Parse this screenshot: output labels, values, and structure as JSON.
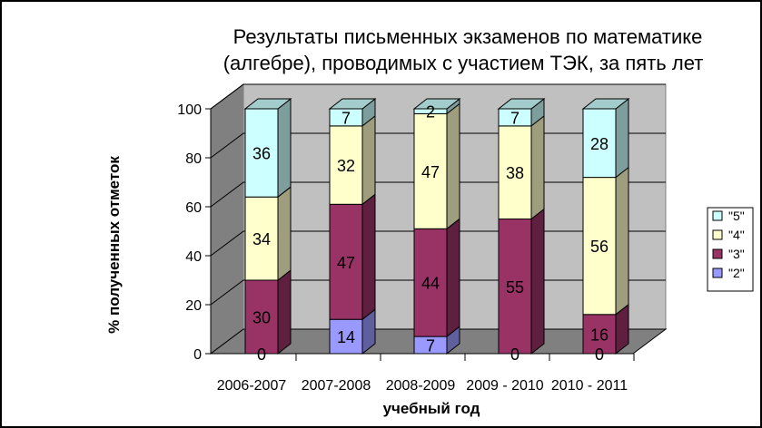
{
  "chart_data": {
    "type": "bar",
    "stacked": true,
    "three_d": true,
    "title_lines": [
      "Результаты письменных экзаменов по математике",
      "(алгебре), проводимых с участием ТЭК, за пять лет"
    ],
    "xlabel": "учебный год",
    "ylabel": "% полученных отметок",
    "ylim": [
      0,
      100
    ],
    "yticks": [
      "0",
      "20",
      "40",
      "60",
      "80",
      "100"
    ],
    "categories": [
      "2006-2007",
      "2007-2008",
      "2008-2009",
      "2009 - 2010",
      "2010 - 2011"
    ],
    "series": [
      {
        "name": "\"2\"",
        "color": "#9999ff",
        "values": [
          0,
          14,
          7,
          0,
          0
        ]
      },
      {
        "name": "\"3\"",
        "color": "#993366",
        "values": [
          30,
          47,
          44,
          55,
          16
        ]
      },
      {
        "name": "\"4\"",
        "color": "#ffffcc",
        "values": [
          34,
          32,
          47,
          38,
          56
        ]
      },
      {
        "name": "\"5\"",
        "color": "#ccffff",
        "values": [
          36,
          7,
          2,
          7,
          28
        ]
      }
    ],
    "data_labels": [
      [
        "0",
        "14",
        "7",
        "0",
        "0"
      ],
      [
        "30",
        "47",
        "44",
        "55",
        "16"
      ],
      [
        "34",
        "32",
        "47",
        "38",
        "56"
      ],
      [
        "36",
        "7",
        "2",
        "7",
        "28"
      ]
    ],
    "legend_position": "right",
    "legend_order": [
      3,
      2,
      1,
      0
    ],
    "gridlines": true,
    "wall_color": "#c0c0c0"
  }
}
